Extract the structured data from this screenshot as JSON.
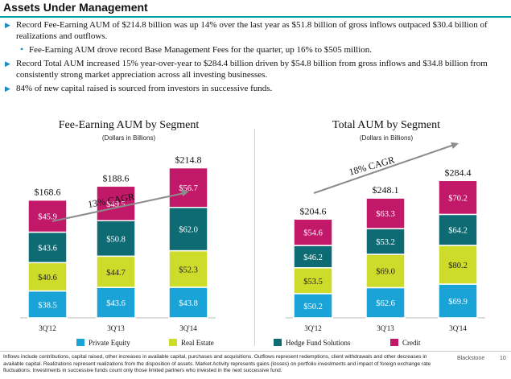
{
  "header": {
    "title": "Assets Under Management"
  },
  "bullets": [
    {
      "text": "Record Fee-Earning AUM of $214.8 billion was up 14% over the last year as $51.8 billion of gross inflows outpaced $30.4 billion of realizations and outflows."
    },
    {
      "text": "Fee-Earning AUM drove record Base Management Fees for the quarter, up 16% to $505 million.",
      "sub": true
    },
    {
      "text": "Record Total AUM increased 15% year-over-year to $284.4 billion driven by $54.8 billion from gross inflows and $34.8 billion from consistently strong market appreciation across all investing businesses."
    },
    {
      "text": "84% of new capital raised is sourced from investors in successive funds."
    }
  ],
  "colors": {
    "private_equity": "#1aa3d6",
    "real_estate": "#cddc2a",
    "hedge_fund": "#0f6b73",
    "credit": "#c2186a",
    "accent": "#00a3a3",
    "bullet": "#1e8bc3"
  },
  "chart_data": [
    {
      "type": "bar",
      "stacked": true,
      "title": "Fee-Earning AUM by Segment",
      "subtitle": "(Dollars in Billions)",
      "categories": [
        "3Q'12",
        "3Q'13",
        "3Q'14"
      ],
      "series": [
        {
          "name": "Private Equity",
          "values": [
            38.5,
            43.6,
            43.8
          ],
          "labels": [
            "$38.5",
            "$43.6",
            "$43.8"
          ]
        },
        {
          "name": "Real Estate",
          "values": [
            40.6,
            44.7,
            52.3
          ],
          "labels": [
            "$40.6",
            "$44.7",
            "$52.3"
          ]
        },
        {
          "name": "Hedge Fund Solutions",
          "values": [
            43.6,
            50.8,
            62.0
          ],
          "labels": [
            "$43.6",
            "$50.8",
            "$62.0"
          ]
        },
        {
          "name": "Credit",
          "values": [
            45.9,
            49.5,
            56.7
          ],
          "labels": [
            "$45.9",
            "$49.5",
            "$56.7"
          ]
        }
      ],
      "totals": [
        "$168.6",
        "$188.6",
        "$214.8"
      ],
      "annotation": "13% CAGR",
      "ylim": [
        0,
        300
      ]
    },
    {
      "type": "bar",
      "stacked": true,
      "title": "Total AUM by Segment",
      "subtitle": "(Dollars in Billions)",
      "categories": [
        "3Q'12",
        "3Q'13",
        "3Q'14"
      ],
      "series": [
        {
          "name": "Private Equity",
          "values": [
            50.2,
            62.6,
            69.9
          ],
          "labels": [
            "$50.2",
            "$62.6",
            "$69.9"
          ]
        },
        {
          "name": "Real Estate",
          "values": [
            53.5,
            69.0,
            80.2
          ],
          "labels": [
            "$53.5",
            "$69.0",
            "$80.2"
          ]
        },
        {
          "name": "Hedge Fund Solutions",
          "values": [
            46.2,
            53.2,
            64.2
          ],
          "labels": [
            "$46.2",
            "$53.2",
            "$64.2"
          ]
        },
        {
          "name": "Credit",
          "values": [
            54.6,
            63.3,
            70.2
          ],
          "labels": [
            "$54.6",
            "$63.3",
            "$70.2"
          ]
        }
      ],
      "totals": [
        "$204.6",
        "$248.1",
        "$284.4"
      ],
      "annotation": "18% CAGR",
      "ylim": [
        0,
        300
      ]
    }
  ],
  "legend": [
    "Private Equity",
    "Real Estate",
    "Hedge Fund Solutions",
    "Credit"
  ],
  "footer": {
    "note": "Inflows include contributions, capital raised, other increases in available capital, purchases and acquisitions. Outflows represent redemptions, client withdrawals and other decreases in available capital. Realizations represent realizations from the disposition of assets. Market Activity represents gains (losses) on portfolio investments and impact of foreign exchange rate fluctuations. Investments in successive funds count only those limited partners who invested in the next successive fund.",
    "brand": "Blackstone",
    "page": "10"
  }
}
